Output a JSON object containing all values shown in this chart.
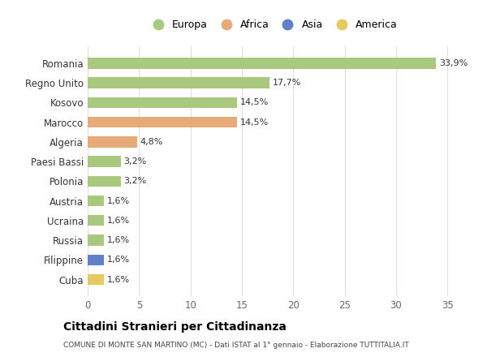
{
  "countries": [
    "Romania",
    "Regno Unito",
    "Kosovo",
    "Marocco",
    "Algeria",
    "Paesi Bassi",
    "Polonia",
    "Austria",
    "Ucraina",
    "Russia",
    "Filippine",
    "Cuba"
  ],
  "values": [
    33.9,
    17.7,
    14.5,
    14.5,
    4.8,
    3.2,
    3.2,
    1.6,
    1.6,
    1.6,
    1.6,
    1.6
  ],
  "labels": [
    "33,9%",
    "17,7%",
    "14,5%",
    "14,5%",
    "4,8%",
    "3,2%",
    "3,2%",
    "1,6%",
    "1,6%",
    "1,6%",
    "1,6%",
    "1,6%"
  ],
  "continent": [
    "Europa",
    "Europa",
    "Europa",
    "Africa",
    "Africa",
    "Europa",
    "Europa",
    "Europa",
    "Europa",
    "Europa",
    "Asia",
    "America"
  ],
  "colors": {
    "Europa": "#a8c97e",
    "Africa": "#e8aa78",
    "Asia": "#6080c8",
    "America": "#e8c860"
  },
  "legend_order": [
    "Europa",
    "Africa",
    "Asia",
    "America"
  ],
  "title": "Cittadini Stranieri per Cittadinanza",
  "subtitle": "COMUNE DI MONTE SAN MARTINO (MC) - Dati ISTAT al 1° gennaio - Elaborazione TUTTITALIA.IT",
  "xlim": [
    0,
    36
  ],
  "xticks": [
    0,
    5,
    10,
    15,
    20,
    25,
    30,
    35
  ],
  "background_color": "#ffffff",
  "grid_color": "#e0e0e0",
  "bar_height": 0.55
}
